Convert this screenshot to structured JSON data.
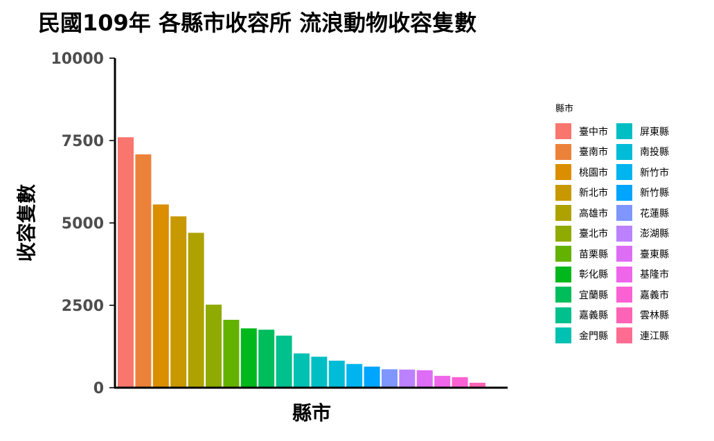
{
  "title": "民國109年 各縣市收容所 流浪動物收容隻數",
  "chart_data": {
    "type": "bar",
    "xlabel": "縣市",
    "ylabel": "收容隻數",
    "ylim": [
      0,
      10000
    ],
    "yticks": [
      "0",
      "2500",
      "5000",
      "7500",
      "10000"
    ],
    "legend_title": "縣市",
    "legend_position": "right",
    "categories": [
      "臺中市",
      "臺南市",
      "桃園市",
      "新北市",
      "高雄市",
      "臺北市",
      "苗栗縣",
      "彰化縣",
      "宜蘭縣",
      "嘉義縣",
      "金門縣",
      "屏東縣",
      "南投縣",
      "新竹市",
      "新竹縣",
      "花蓮縣",
      "澎湖縣",
      "臺東縣",
      "基隆市",
      "嘉義市",
      "雲林縣",
      "連江縣"
    ],
    "values": [
      7600,
      7080,
      5560,
      5200,
      4700,
      2520,
      2060,
      1800,
      1760,
      1580,
      1040,
      940,
      820,
      720,
      640,
      560,
      550,
      530,
      360,
      320,
      150,
      0
    ],
    "colors": [
      "#F8766D",
      "#EC8239",
      "#DB8E00",
      "#C79800",
      "#AEA200",
      "#8FAA00",
      "#64B200",
      "#00B81B",
      "#00BD5C",
      "#00C08D",
      "#00C1B2",
      "#00BFC4",
      "#00BCD6",
      "#00B4EF",
      "#00A5FF",
      "#7F96FF",
      "#BC81FF",
      "#DE6DF6",
      "#F066EA",
      "#FC61D3",
      "#FF63B6",
      "#FF6C92"
    ]
  }
}
